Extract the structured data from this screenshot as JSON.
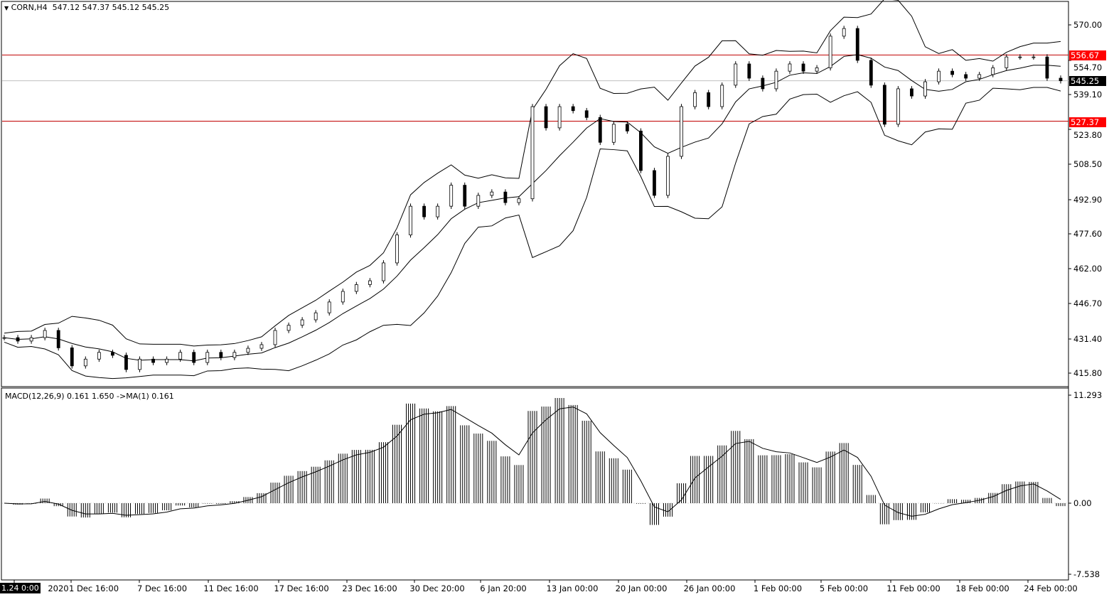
{
  "header": {
    "symbol": "CORN,H4",
    "ohlc": "547.12 547.37 545.12 545.25",
    "menu_icon": "triangle-down-icon"
  },
  "macd_header": {
    "label": "MACD(12,26,9) 0.161 1.650  ->MA(1) 0.161"
  },
  "price_tags": {
    "upper_line": "556.67",
    "current": "545.25",
    "lower_line": "527.37"
  },
  "colors": {
    "line_tag": "#ff0000",
    "current_tag": "#000000",
    "candles": "#000000",
    "bands": "#000000",
    "histogram": "#000000",
    "current_line": "#c0c0c0"
  },
  "cursor_time": "1.24 0:00",
  "chart_data": [
    {
      "type": "candlestick",
      "title": "CORN,H4",
      "indicators": [
        "Bollinger Bands"
      ],
      "y_ticks": [
        "570.00",
        "554.70",
        "539.10",
        "523.80",
        "508.50",
        "492.90",
        "477.60",
        "462.00",
        "446.70",
        "431.40",
        "415.80"
      ],
      "ylim": [
        415.8,
        570.0
      ],
      "x_ticks": [
        "2020",
        "1 Dec 16:00",
        "7 Dec 16:00",
        "11 Dec 16:00",
        "17 Dec 16:00",
        "23 Dec 16:00",
        "30 Dec 20:00",
        "6 Jan 20:00",
        "13 Jan 00:00",
        "20 Jan 00:00",
        "26 Jan 00:00",
        "1 Feb 00:00",
        "5 Feb 00:00",
        "11 Feb 00:00",
        "18 Feb 00:00",
        "24 Feb 00:00"
      ],
      "horizontal_lines": [
        556.67,
        527.37
      ],
      "current_price": 545.25,
      "close": [
        431.5,
        430,
        431.5,
        434.7,
        427,
        419,
        422,
        425,
        423.7,
        417.4,
        422,
        420.5,
        422,
        425,
        420.5,
        425,
        422.7,
        425,
        426.8,
        428.4,
        434.7,
        437,
        439.4,
        442.5,
        447.3,
        452,
        455,
        456.7,
        464.6,
        477,
        489.7,
        485,
        489.7,
        499,
        489.7,
        494.5,
        496,
        491.3,
        493,
        533.8,
        524.4,
        533.8,
        532,
        529,
        518,
        526,
        523,
        505.5,
        494.5,
        511.8,
        533.8,
        540,
        533.8,
        543.3,
        552.7,
        546.4,
        541.7,
        549.5,
        552.7,
        549.5,
        551,
        565,
        568.4,
        554.3,
        543.3,
        526,
        541.7,
        538.5,
        544.8,
        549.5,
        548,
        546.4,
        548,
        551,
        555.8,
        555.8,
        555.8,
        546.4,
        545.25
      ]
    },
    {
      "type": "bar",
      "title": "MACD(12,26,9)",
      "series": [
        {
          "name": "MACD"
        },
        {
          "name": "MA(1)"
        }
      ],
      "y_ticks": [
        "11.293",
        "0.00",
        "-7.538"
      ],
      "ylim": [
        -7.538,
        11.293
      ],
      "last_values": {
        "macd": 0.161,
        "signal": 1.65,
        "ma": 0.161
      }
    }
  ]
}
